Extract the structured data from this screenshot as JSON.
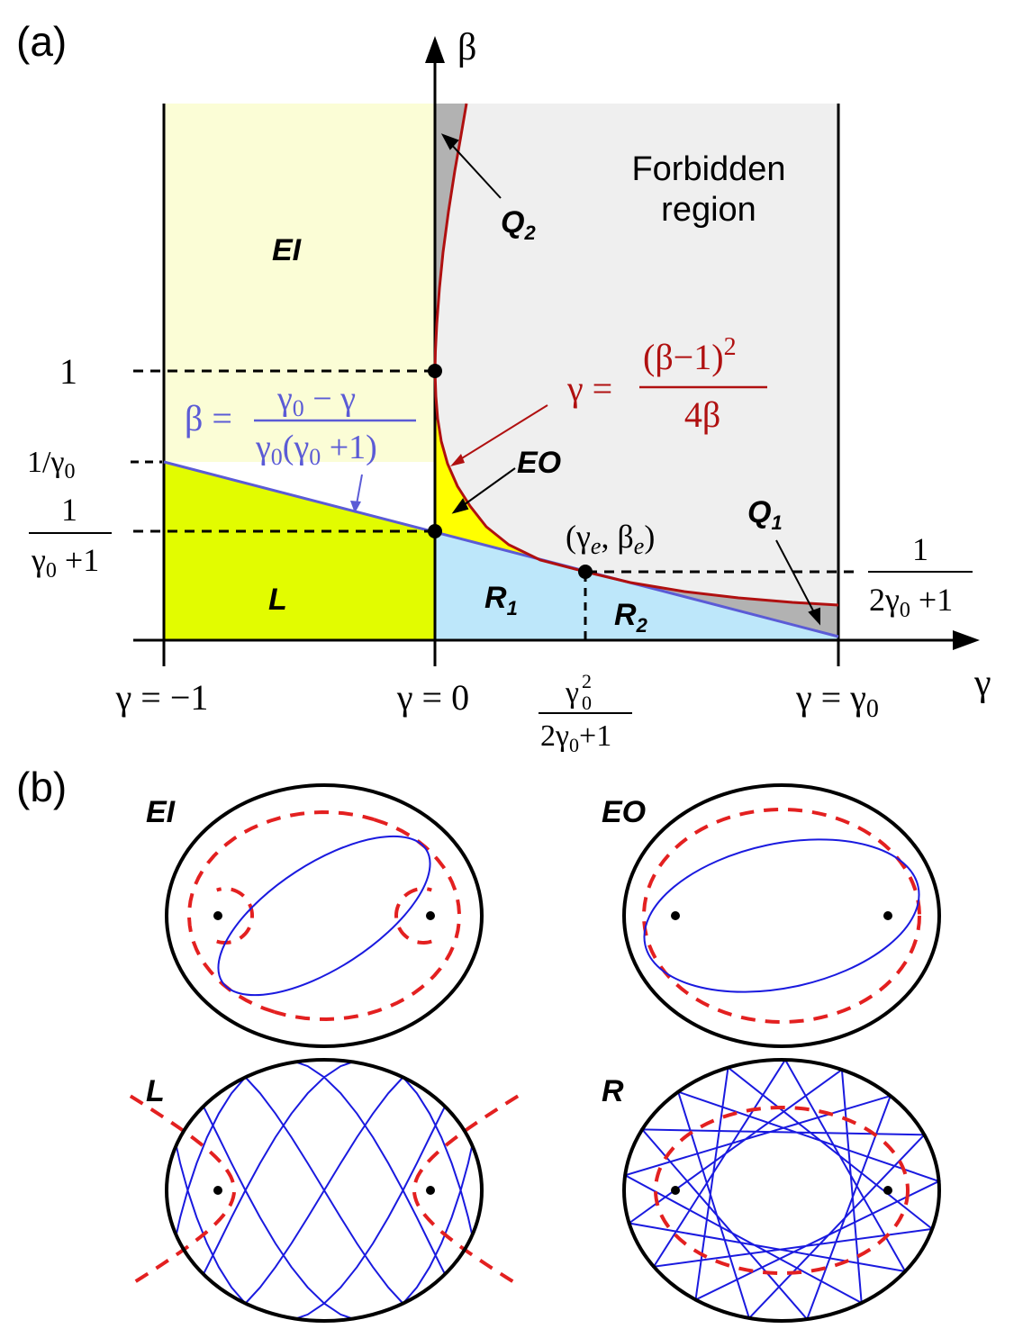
{
  "panel_a": {
    "label": "(a)",
    "axes": {
      "y_label": "β",
      "x_label": "γ"
    },
    "regions": {
      "EI": "EI",
      "L": "L",
      "EO": "EO",
      "R1": "R",
      "R1_sub": "1",
      "R2": "R",
      "R2_sub": "2",
      "Q1": "Q",
      "Q1_sub": "1",
      "Q2": "Q",
      "Q2_sub": "2",
      "forbidden_line1": "Forbidden",
      "forbidden_line2": "region"
    },
    "y_ticks": {
      "one": "1",
      "inv_gamma0": "1/γ",
      "inv_gamma0_sub": "0",
      "frac_num": "1",
      "frac_den": "γ",
      "frac_den_sub": "0",
      "frac_den_rest": " +1"
    },
    "x_ticks": {
      "minus_one": "γ = −1",
      "zero": "γ = 0",
      "gamma0": "γ = γ",
      "gamma0_sub": "0",
      "ge_num": "γ",
      "ge_num_sup": "2",
      "ge_num_sub": "0",
      "ge_den": "2γ",
      "ge_den_sub": "0",
      "ge_den_rest": "+1"
    },
    "right_tick": {
      "num": "1",
      "den": "2γ",
      "den_sub": "0",
      "den_rest": " +1"
    },
    "curve_eq": {
      "lhs": "γ =",
      "num": "(β−1)",
      "num_sup": "2",
      "den": "4β"
    },
    "line_eq": {
      "lhs": "β =",
      "num_a": "γ",
      "num_a_sub": "0",
      "num_b": " − γ",
      "den_a": "γ",
      "den_a_sub": "0",
      "den_b": "(γ",
      "den_b_sub": "0",
      "den_c": " +1)"
    },
    "point_label": {
      "open": "(γ",
      "sub1": "e",
      "mid": ", β",
      "sub2": "e",
      "close": ")"
    },
    "colors": {
      "EI": "#fbfdd6",
      "L": "#e2fc00",
      "EO": "#ffff00",
      "R": "#bde7fa",
      "forbidden": "#efefef",
      "Q": "#b2b2b2",
      "curve": "#b01010",
      "line": "#5b5bd6"
    }
  },
  "panel_b": {
    "label": "(b)",
    "EI": "EI",
    "EO": "EO",
    "L": "L",
    "R": "R",
    "colors": {
      "trajectory": "#1a1adf",
      "caustic": "#e32020",
      "boundary": "#000000"
    }
  }
}
